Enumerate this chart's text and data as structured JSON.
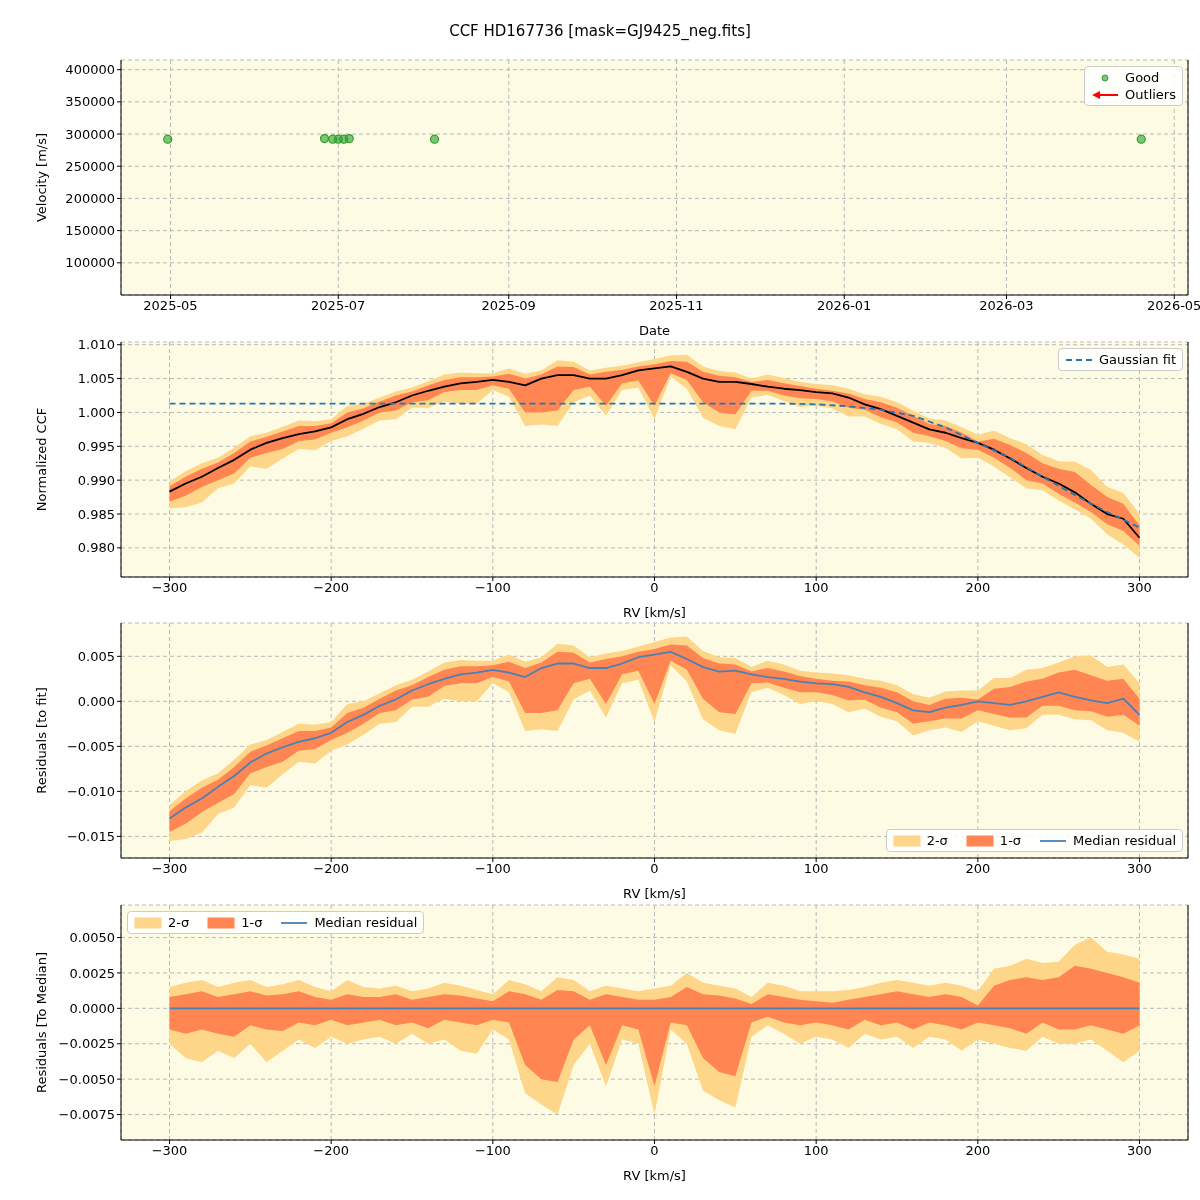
{
  "chart_data": [
    {
      "type": "scatter",
      "title": "CCF HD167736 [mask=GJ9425_neg.fits]",
      "xlabel": "Date",
      "ylabel": "Velocity [m/s]",
      "xlim": [
        "2025-04-13",
        "2026-05-06"
      ],
      "xticks": [
        "2025-05",
        "2025-07",
        "2025-09",
        "2025-11",
        "2026-01",
        "2026-03",
        "2026-05"
      ],
      "ylim": [
        50000,
        415000
      ],
      "yticks": [
        100000,
        150000,
        200000,
        250000,
        300000,
        350000,
        400000
      ],
      "grid": true,
      "legend": "top right",
      "marker": "circle",
      "series": [
        {
          "name": "Good",
          "color": "#2ca02c",
          "x": [
            "2025-04-30",
            "2025-06-26",
            "2025-06-29",
            "2025-07-01",
            "2025-07-03",
            "2025-07-05",
            "2025-08-05",
            "2026-04-19"
          ],
          "values": [
            292000,
            293000,
            292000,
            292000,
            292000,
            293000,
            292000,
            292000
          ]
        },
        {
          "name": "Outliers",
          "color": "#ff0000",
          "marker": "none"
        }
      ]
    },
    {
      "type": "line",
      "xlabel": "RV [km/s]",
      "ylabel": "Normalized CCF",
      "x": [
        -300,
        -290,
        -280,
        -270,
        -260,
        -250,
        -240,
        -230,
        -220,
        -210,
        -200,
        -190,
        -180,
        -170,
        -160,
        -150,
        -140,
        -130,
        -120,
        -110,
        -100,
        -90,
        -80,
        -70,
        -60,
        -50,
        -40,
        -30,
        -20,
        -10,
        0,
        10,
        20,
        30,
        40,
        50,
        60,
        70,
        80,
        90,
        100,
        110,
        120,
        130,
        140,
        150,
        160,
        170,
        180,
        190,
        200,
        210,
        220,
        230,
        240,
        250,
        260,
        270,
        280,
        290,
        300
      ],
      "xlim": [
        -330,
        330
      ],
      "xticks": [
        {
          "value": -300,
          "label": "−300"
        },
        {
          "value": -200,
          "label": "−200"
        },
        {
          "value": -100,
          "label": "−100"
        },
        0,
        100,
        200,
        300
      ],
      "ylim": [
        0.9757,
        1.0104
      ],
      "yticks": [
        {
          "value": 0.98,
          "label": "0.980"
        },
        {
          "value": 0.985,
          "label": "0.985"
        },
        {
          "value": 0.99,
          "label": "0.990"
        },
        {
          "value": 0.995,
          "label": "0.995"
        },
        {
          "value": 1.0,
          "label": "1.000"
        },
        {
          "value": 1.005,
          "label": "1.005"
        },
        {
          "value": 1.01,
          "label": "1.010"
        }
      ],
      "grid": true,
      "legend": "top right",
      "series": [
        {
          "type": "area",
          "color": "#fed689",
          "values": [
            null,
            null,
            null,
            null,
            null,
            null,
            null,
            null,
            null,
            null,
            null,
            null,
            null,
            null,
            null,
            null,
            null,
            null,
            null,
            null,
            null,
            null,
            null,
            null,
            null,
            null,
            null,
            null,
            null,
            null,
            null,
            null,
            null,
            null,
            null,
            null,
            null,
            null,
            null,
            null,
            null,
            null,
            null,
            null,
            null,
            null,
            null,
            null,
            null,
            null,
            null,
            null,
            null,
            null,
            null,
            null,
            null,
            null,
            null,
            null,
            null
          ],
          "lower": [
            0.9858,
            0.986,
            0.9867,
            0.9888,
            0.9895,
            0.992,
            0.9917,
            0.9932,
            0.9946,
            0.9944,
            0.9958,
            0.9965,
            0.9976,
            0.9988,
            0.999,
            1.0007,
            1.0007,
            1.0016,
            1.0013,
            1.0013,
            1.0033,
            1.0023,
            0.998,
            0.9982,
            0.998,
            1.0015,
            1.0025,
            0.9995,
            1.0033,
            1.0037,
            0.999,
            1.0053,
            1.0035,
            0.9992,
            0.998,
            0.9975,
            1.0022,
            1.0026,
            1.0017,
            1.0008,
            1.001,
            1.0006,
            0.9994,
            0.9994,
            0.9983,
            0.9975,
            0.9957,
            0.9955,
            0.9948,
            0.9932,
            0.9933,
            0.992,
            0.9904,
            0.9888,
            0.9885,
            0.987,
            0.9857,
            0.9843,
            0.982,
            0.9805,
            0.9785
          ],
          "upper": [
            0.9898,
            0.9913,
            0.9925,
            0.9933,
            0.9948,
            0.9965,
            0.997,
            0.9979,
            0.9988,
            0.9987,
            0.999,
            1.001,
            1.0013,
            1.0022,
            1.0031,
            1.0037,
            1.0046,
            1.0056,
            1.0059,
            1.0058,
            1.0058,
            1.0065,
            1.0057,
            1.0062,
            1.0077,
            1.0075,
            1.0062,
            1.0066,
            1.0069,
            1.0074,
            1.0079,
            1.0084,
            1.0085,
            1.0068,
            1.0061,
            1.0059,
            1.005,
            1.0056,
            1.0051,
            1.0045,
            1.0042,
            1.004,
            1.0035,
            1.0027,
            1.0023,
            1.0015,
            1.0003,
            0.9991,
            0.9988,
            0.9978,
            0.9967,
            0.9973,
            0.9962,
            0.9953,
            0.9937,
            0.9928,
            0.9927,
            0.9915,
            0.989,
            0.9881,
            0.985
          ]
        },
        {
          "type": "area",
          "color": "#ff8552",
          "values": [
            null,
            null,
            null,
            null,
            null,
            null,
            null,
            null,
            null,
            null,
            null,
            null,
            null,
            null,
            null,
            null,
            null,
            null,
            null,
            null,
            null,
            null,
            null,
            null,
            null,
            null,
            null,
            null,
            null,
            null,
            null,
            null,
            null,
            null,
            null,
            null,
            null,
            null,
            null,
            null,
            null,
            null,
            null,
            null,
            null,
            null,
            null,
            null,
            null,
            null,
            null,
            null,
            null,
            null,
            null,
            null,
            null,
            null,
            null,
            null,
            null
          ],
          "lower": [
            0.9868,
            0.9877,
            0.989,
            0.99,
            0.991,
            0.9933,
            0.994,
            0.9946,
            0.9958,
            0.996,
            0.997,
            0.9978,
            0.9988,
            1.0,
            1.0003,
            1.0015,
            1.0018,
            1.003,
            1.0033,
            1.0033,
            1.004,
            1.0035,
            1.0,
            1.0,
            1.0003,
            1.0033,
            1.0038,
            1.001,
            1.0043,
            1.0047,
            1.001,
            1.0058,
            1.0048,
            1.0015,
            1.0,
            0.9997,
            1.0032,
            1.0032,
            1.0025,
            1.0021,
            1.002,
            1.0016,
            1.0007,
            1.0004,
            0.9993,
            0.9985,
            0.997,
            0.9965,
            0.9958,
            0.9947,
            0.9945,
            0.9933,
            0.9918,
            0.99,
            0.9895,
            0.988,
            0.9867,
            0.9853,
            0.9835,
            0.9825,
            0.9803
          ],
          "upper": [
            0.9891,
            0.9905,
            0.9917,
            0.9926,
            0.994,
            0.9957,
            0.9964,
            0.9972,
            0.998,
            0.998,
            0.9984,
            1.0,
            1.0006,
            1.0016,
            1.0025,
            1.0031,
            1.004,
            1.0048,
            1.0052,
            1.0052,
            1.0053,
            1.0057,
            1.005,
            1.0056,
            1.0068,
            1.0067,
            1.0056,
            1.006,
            1.0063,
            1.0068,
            1.0071,
            1.0076,
            1.0075,
            1.006,
            1.0054,
            1.0052,
            1.0045,
            1.0048,
            1.0043,
            1.0039,
            1.0035,
            1.0032,
            1.0028,
            1.002,
            1.0015,
            1.0007,
            0.9995,
            0.9983,
            0.998,
            0.997,
            0.9957,
            0.9961,
            0.9952,
            0.994,
            0.9925,
            0.9917,
            0.9912,
            0.9893,
            0.9875,
            0.9865,
            0.9833
          ]
        },
        {
          "type": "line",
          "color": "#000000",
          "values": [
            0.9883,
            0.9895,
            0.9905,
            0.9918,
            0.993,
            0.9945,
            0.9955,
            0.9962,
            0.9968,
            0.9972,
            0.9978,
            0.999,
            0.9998,
            1.0008,
            1.0015,
            1.0025,
            1.0032,
            1.0038,
            1.0043,
            1.0045,
            1.0048,
            1.0045,
            1.004,
            1.005,
            1.0055,
            1.0055,
            1.005,
            1.005,
            1.0055,
            1.0062,
            1.0065,
            1.0068,
            1.006,
            1.005,
            1.0045,
            1.0045,
            1.0042,
            1.0038,
            1.0035,
            1.0033,
            1.003,
            1.0028,
            1.0022,
            1.0012,
            1.0005,
            0.9995,
            0.9985,
            0.9975,
            0.997,
            0.9962,
            0.9955,
            0.9945,
            0.9932,
            0.9918,
            0.9905,
            0.9895,
            0.9882,
            0.9865,
            0.985,
            0.9843,
            0.9815
          ]
        },
        {
          "type": "line",
          "name": "Gaussian fit",
          "color": "#1f77b4",
          "line_style": "dashed",
          "x": [
            -300,
            -280,
            -260,
            -240,
            -220,
            -200,
            -180,
            -160,
            -140,
            -120,
            -100,
            -80,
            -60,
            -40,
            -20,
            0,
            20,
            40,
            60,
            80,
            100,
            120,
            140,
            160,
            180,
            200,
            220,
            240,
            260,
            280,
            300
          ],
          "values": [
            1.0013,
            1.0013,
            1.0013,
            1.0013,
            1.0013,
            1.0013,
            1.0013,
            1.0013,
            1.0013,
            1.0013,
            1.0013,
            1.0013,
            1.0013,
            1.0013,
            1.0013,
            1.0013,
            1.0013,
            1.0013,
            1.0013,
            1.0013,
            1.0012,
            1.0009,
            1.0004,
            0.9995,
            0.9978,
            0.9955,
            0.9933,
            0.9905,
            0.9878,
            0.9853,
            0.983
          ]
        }
      ]
    },
    {
      "type": "line",
      "xlabel": "RV [km/s]",
      "ylabel": "Residuals [to fit]",
      "x": [
        -300,
        -290,
        -280,
        -270,
        -260,
        -250,
        -240,
        -230,
        -220,
        -210,
        -200,
        -190,
        -180,
        -170,
        -160,
        -150,
        -140,
        -130,
        -120,
        -110,
        -100,
        -90,
        -80,
        -70,
        -60,
        -50,
        -40,
        -30,
        -20,
        -10,
        0,
        10,
        20,
        30,
        40,
        50,
        60,
        70,
        80,
        90,
        100,
        110,
        120,
        130,
        140,
        150,
        160,
        170,
        180,
        190,
        200,
        210,
        220,
        230,
        240,
        250,
        260,
        270,
        280,
        290,
        300
      ],
      "xlim": [
        -330,
        330
      ],
      "xticks": [
        {
          "value": -300,
          "label": "−300"
        },
        {
          "value": -200,
          "label": "−200"
        },
        {
          "value": -100,
          "label": "−100"
        },
        0,
        100,
        200,
        300
      ],
      "ylim": [
        -0.0174,
        0.0087
      ],
      "yticks": [
        {
          "value": -0.015,
          "label": "−0.015"
        },
        {
          "value": -0.01,
          "label": "−0.010"
        },
        {
          "value": -0.005,
          "label": "−0.005"
        },
        {
          "value": 0,
          "label": "0.000"
        },
        {
          "value": 0.005,
          "label": "0.005"
        }
      ],
      "grid": true,
      "legend": "bottom right",
      "series": [
        {
          "type": "area",
          "name": "2-σ",
          "color": "#fed689",
          "values": [
            null,
            null,
            null,
            null,
            null,
            null,
            null,
            null,
            null,
            null,
            null,
            null,
            null,
            null,
            null,
            null,
            null,
            null,
            null,
            null,
            null,
            null,
            null,
            null,
            null,
            null,
            null,
            null,
            null,
            null,
            null,
            null,
            null,
            null,
            null,
            null,
            null,
            null,
            null,
            null,
            null,
            null,
            null,
            null,
            null,
            null,
            null,
            null,
            null,
            null,
            null,
            null,
            null,
            null,
            null,
            null,
            null,
            null,
            null,
            null,
            null
          ],
          "lower": [
            -0.0155,
            -0.0153,
            -0.0146,
            -0.0125,
            -0.0118,
            -0.0093,
            -0.0096,
            -0.0081,
            -0.0067,
            -0.0069,
            -0.0055,
            -0.0048,
            -0.0037,
            -0.0025,
            -0.0023,
            -0.0006,
            -0.0006,
            0.0003,
            0.0,
            0.0,
            0.002,
            0.001,
            -0.0033,
            -0.0031,
            -0.0033,
            0.0002,
            0.0012,
            -0.0018,
            0.002,
            0.0024,
            -0.0023,
            0.004,
            0.0022,
            -0.002,
            -0.0032,
            -0.0036,
            0.001,
            0.0015,
            0.0007,
            -0.0003,
            0.0,
            -0.0003,
            -0.0012,
            -0.0008,
            -0.0017,
            -0.0022,
            -0.0038,
            -0.0032,
            -0.0029,
            -0.0034,
            -0.0022,
            -0.0027,
            -0.0032,
            -0.003,
            -0.0015,
            -0.0015,
            -0.002,
            -0.0021,
            -0.0032,
            -0.0035,
            -0.0045
          ],
          "upper": [
            -0.0115,
            -0.01,
            -0.0088,
            -0.008,
            -0.0065,
            -0.0048,
            -0.0043,
            -0.0034,
            -0.0025,
            -0.0026,
            -0.0023,
            -0.0003,
            0.0,
            0.0009,
            0.0018,
            0.0024,
            0.0033,
            0.0043,
            0.0046,
            0.0045,
            0.0045,
            0.0052,
            0.0044,
            0.0049,
            0.0064,
            0.0062,
            0.0049,
            0.0053,
            0.0056,
            0.0061,
            0.0066,
            0.0071,
            0.0072,
            0.0056,
            0.0049,
            0.0048,
            0.0038,
            0.0045,
            0.0041,
            0.0034,
            0.0032,
            0.0031,
            0.0029,
            0.0025,
            0.0023,
            0.0018,
            0.0008,
            0.0004,
            0.0011,
            0.0012,
            0.0012,
            0.0026,
            0.0026,
            0.0035,
            0.0037,
            0.0043,
            0.005,
            0.0051,
            0.0038,
            0.0041,
            0.002
          ]
        },
        {
          "type": "area",
          "name": "1-σ",
          "color": "#ff8552",
          "values": [
            null,
            null,
            null,
            null,
            null,
            null,
            null,
            null,
            null,
            null,
            null,
            null,
            null,
            null,
            null,
            null,
            null,
            null,
            null,
            null,
            null,
            null,
            null,
            null,
            null,
            null,
            null,
            null,
            null,
            null,
            null,
            null,
            null,
            null,
            null,
            null,
            null,
            null,
            null,
            null,
            null,
            null,
            null,
            null,
            null,
            null,
            null,
            null,
            null,
            null,
            null,
            null,
            null,
            null,
            null,
            null,
            null,
            null,
            null,
            null,
            null
          ],
          "lower": [
            -0.0145,
            -0.0136,
            -0.0123,
            -0.0113,
            -0.0103,
            -0.008,
            -0.0073,
            -0.0067,
            -0.0055,
            -0.0053,
            -0.0043,
            -0.0035,
            -0.0025,
            -0.0013,
            -0.001,
            0.0002,
            0.0005,
            0.0017,
            0.002,
            0.002,
            0.0027,
            0.0022,
            -0.0013,
            -0.0013,
            -0.001,
            0.002,
            0.0025,
            -0.0003,
            0.003,
            0.0034,
            -0.0003,
            0.0045,
            0.0035,
            0.0003,
            -0.0012,
            -0.0014,
            0.002,
            0.0021,
            0.0015,
            0.001,
            0.001,
            0.0007,
            0.0001,
            0.0002,
            -0.0007,
            -0.0012,
            -0.0025,
            -0.0022,
            -0.0019,
            -0.0019,
            -0.001,
            -0.0014,
            -0.0018,
            -0.0018,
            -0.0005,
            -0.0005,
            -0.001,
            -0.0011,
            -0.0017,
            -0.0015,
            -0.0027
          ],
          "upper": [
            -0.0122,
            -0.0108,
            -0.0096,
            -0.0087,
            -0.0073,
            -0.0056,
            -0.0049,
            -0.0041,
            -0.0033,
            -0.0033,
            -0.0029,
            -0.0013,
            -0.0007,
            0.0003,
            0.0012,
            0.0018,
            0.0027,
            0.0035,
            0.0039,
            0.0039,
            0.004,
            0.0044,
            0.0037,
            0.0043,
            0.0055,
            0.0054,
            0.0043,
            0.0047,
            0.005,
            0.0055,
            0.0058,
            0.0063,
            0.0062,
            0.0048,
            0.0042,
            0.0041,
            0.0033,
            0.0037,
            0.0033,
            0.0028,
            0.0025,
            0.0023,
            0.0022,
            0.0018,
            0.0015,
            0.001,
            0.0,
            -0.0004,
            0.0003,
            0.0004,
            0.0002,
            0.0014,
            0.0016,
            0.0022,
            0.0025,
            0.0032,
            0.0035,
            0.0029,
            0.0023,
            0.0025,
            0.0003
          ]
        },
        {
          "type": "line",
          "name": "Median residual",
          "color": "#4682b4",
          "values": [
            -0.013,
            -0.0118,
            -0.0108,
            -0.0095,
            -0.0083,
            -0.0068,
            -0.0058,
            -0.0051,
            -0.0045,
            -0.0041,
            -0.0035,
            -0.0023,
            -0.0015,
            -0.0005,
            0.0002,
            0.0012,
            0.0019,
            0.0025,
            0.003,
            0.0032,
            0.0035,
            0.0032,
            0.0027,
            0.0037,
            0.0042,
            0.0042,
            0.0037,
            0.0037,
            0.0042,
            0.0049,
            0.0052,
            0.0055,
            0.0047,
            0.0038,
            0.0033,
            0.0034,
            0.003,
            0.0027,
            0.0025,
            0.0022,
            0.002,
            0.0019,
            0.0016,
            0.001,
            0.0005,
            -0.0002,
            -0.001,
            -0.0012,
            -0.0007,
            -0.0004,
            0.0,
            -0.0002,
            -0.0004,
            0.0,
            0.0005,
            0.001,
            0.0005,
            0.0001,
            -0.0002,
            0.0003,
            -0.0015
          ]
        }
      ]
    },
    {
      "type": "line",
      "xlabel": "RV [km/s]",
      "ylabel": "Residuals [To Median]",
      "x": [
        -300,
        -290,
        -280,
        -270,
        -260,
        -250,
        -240,
        -230,
        -220,
        -210,
        -200,
        -190,
        -180,
        -170,
        -160,
        -150,
        -140,
        -130,
        -120,
        -110,
        -100,
        -90,
        -80,
        -70,
        -60,
        -50,
        -40,
        -30,
        -20,
        -10,
        0,
        10,
        20,
        30,
        40,
        50,
        60,
        70,
        80,
        90,
        100,
        110,
        120,
        130,
        140,
        150,
        160,
        170,
        180,
        190,
        200,
        210,
        220,
        230,
        240,
        250,
        260,
        270,
        280,
        290,
        300
      ],
      "xlim": [
        -330,
        330
      ],
      "xticks": [
        {
          "value": -300,
          "label": "−300"
        },
        {
          "value": -200,
          "label": "−200"
        },
        {
          "value": -100,
          "label": "−100"
        },
        0,
        100,
        200,
        300
      ],
      "ylim": [
        -0.0093,
        0.0073
      ],
      "yticks": [
        {
          "value": -0.0075,
          "label": "−0.0075"
        },
        {
          "value": -0.005,
          "label": "−0.0050"
        },
        {
          "value": -0.0025,
          "label": "−0.0025"
        },
        {
          "value": 0,
          "label": "0.0000"
        },
        0.0025,
        {
          "value": 0.005,
          "label": "0.0050"
        }
      ],
      "grid": true,
      "legend": "top left",
      "series": [
        {
          "type": "area",
          "name": "2-σ",
          "color": "#fed689",
          "values": [
            null,
            null,
            null,
            null,
            null,
            null,
            null,
            null,
            null,
            null,
            null,
            null,
            null,
            null,
            null,
            null,
            null,
            null,
            null,
            null,
            null,
            null,
            null,
            null,
            null,
            null,
            null,
            null,
            null,
            null,
            null,
            null,
            null,
            null,
            null,
            null,
            null,
            null,
            null,
            null,
            null,
            null,
            null,
            null,
            null,
            null,
            null,
            null,
            null,
            null,
            null,
            null,
            null,
            null,
            null,
            null,
            null,
            null,
            null,
            null,
            null
          ],
          "lower": [
            -0.0025,
            -0.0035,
            -0.0038,
            -0.003,
            -0.0035,
            -0.0025,
            -0.0038,
            -0.003,
            -0.0022,
            -0.0028,
            -0.002,
            -0.0025,
            -0.0022,
            -0.002,
            -0.0025,
            -0.0018,
            -0.0025,
            -0.0022,
            -0.003,
            -0.0032,
            -0.0015,
            -0.0022,
            -0.006,
            -0.0068,
            -0.0075,
            -0.004,
            -0.0025,
            -0.0055,
            -0.0022,
            -0.0025,
            -0.0075,
            -0.0015,
            -0.0025,
            -0.0058,
            -0.0065,
            -0.007,
            -0.002,
            -0.0012,
            -0.0018,
            -0.0025,
            -0.002,
            -0.0022,
            -0.0028,
            -0.0018,
            -0.0022,
            -0.002,
            -0.0028,
            -0.002,
            -0.0022,
            -0.003,
            -0.0022,
            -0.0025,
            -0.0028,
            -0.003,
            -0.002,
            -0.0025,
            -0.0025,
            -0.0022,
            -0.003,
            -0.0038,
            -0.003
          ],
          "upper": [
            0.0015,
            0.0018,
            0.002,
            0.0015,
            0.0018,
            0.002,
            0.0015,
            0.0017,
            0.002,
            0.0015,
            0.0012,
            0.002,
            0.0015,
            0.0014,
            0.0016,
            0.0012,
            0.0014,
            0.0018,
            0.0016,
            0.0013,
            0.001,
            0.002,
            0.0017,
            0.0012,
            0.0022,
            0.002,
            0.0012,
            0.0016,
            0.0014,
            0.0012,
            0.0014,
            0.0016,
            0.0025,
            0.0018,
            0.0016,
            0.0014,
            0.0008,
            0.0018,
            0.0016,
            0.0012,
            0.0012,
            0.0012,
            0.0013,
            0.0015,
            0.0018,
            0.002,
            0.0018,
            0.0016,
            0.0018,
            0.0016,
            0.0012,
            0.0028,
            0.003,
            0.0035,
            0.0032,
            0.0033,
            0.0045,
            0.005,
            0.004,
            0.0038,
            0.0035
          ]
        },
        {
          "type": "area",
          "name": "1-σ",
          "color": "#ff8552",
          "values": [
            null,
            null,
            null,
            null,
            null,
            null,
            null,
            null,
            null,
            null,
            null,
            null,
            null,
            null,
            null,
            null,
            null,
            null,
            null,
            null,
            null,
            null,
            null,
            null,
            null,
            null,
            null,
            null,
            null,
            null,
            null,
            null,
            null,
            null,
            null,
            null,
            null,
            null,
            null,
            null,
            null,
            null,
            null,
            null,
            null,
            null,
            null,
            null,
            null,
            null,
            null,
            null,
            null,
            null,
            null,
            null,
            null,
            null,
            null,
            null,
            null
          ],
          "lower": [
            -0.0015,
            -0.0018,
            -0.0015,
            -0.0018,
            -0.002,
            -0.0012,
            -0.0015,
            -0.0016,
            -0.001,
            -0.0012,
            -0.0008,
            -0.0012,
            -0.001,
            -0.0008,
            -0.0012,
            -0.001,
            -0.0014,
            -0.0008,
            -0.001,
            -0.0012,
            -0.0008,
            -0.001,
            -0.004,
            -0.005,
            -0.0052,
            -0.0022,
            -0.0012,
            -0.004,
            -0.0012,
            -0.0015,
            -0.0055,
            -0.001,
            -0.0012,
            -0.0035,
            -0.0045,
            -0.0048,
            -0.001,
            -0.0006,
            -0.001,
            -0.0012,
            -0.001,
            -0.0012,
            -0.0015,
            -0.0008,
            -0.0012,
            -0.001,
            -0.0015,
            -0.001,
            -0.0012,
            -0.0015,
            -0.001,
            -0.0012,
            -0.0014,
            -0.0018,
            -0.001,
            -0.0015,
            -0.0015,
            -0.0012,
            -0.0015,
            -0.0018,
            -0.0012
          ],
          "upper": [
            0.0008,
            0.001,
            0.0012,
            0.0008,
            0.001,
            0.0012,
            0.0009,
            0.001,
            0.0012,
            0.0008,
            0.0006,
            0.001,
            0.0008,
            0.0008,
            0.001,
            0.0006,
            0.0008,
            0.001,
            0.0009,
            0.0007,
            0.0005,
            0.0012,
            0.001,
            0.0006,
            0.0013,
            0.0012,
            0.0006,
            0.001,
            0.0008,
            0.0006,
            0.0006,
            0.0008,
            0.0015,
            0.001,
            0.0009,
            0.0007,
            0.0003,
            0.001,
            0.0008,
            0.0006,
            0.0005,
            0.0004,
            0.0006,
            0.0008,
            0.001,
            0.0012,
            0.001,
            0.0008,
            0.001,
            0.0008,
            0.0002,
            0.0016,
            0.002,
            0.0022,
            0.002,
            0.0022,
            0.003,
            0.0028,
            0.0025,
            0.0022,
            0.0018
          ]
        },
        {
          "type": "line",
          "name": "Median residual",
          "color": "#4682b4",
          "values": [
            0,
            0,
            0,
            0,
            0,
            0,
            0,
            0,
            0,
            0,
            0,
            0,
            0,
            0,
            0,
            0,
            0,
            0,
            0,
            0,
            0,
            0,
            0,
            0,
            0,
            0,
            0,
            0,
            0,
            0,
            0,
            0,
            0,
            0,
            0,
            0,
            0,
            0,
            0,
            0,
            0,
            0,
            0,
            0,
            0,
            0,
            0,
            0,
            0,
            0,
            0,
            0,
            0,
            0,
            0,
            0,
            0,
            0,
            0,
            0,
            0
          ]
        }
      ]
    }
  ]
}
